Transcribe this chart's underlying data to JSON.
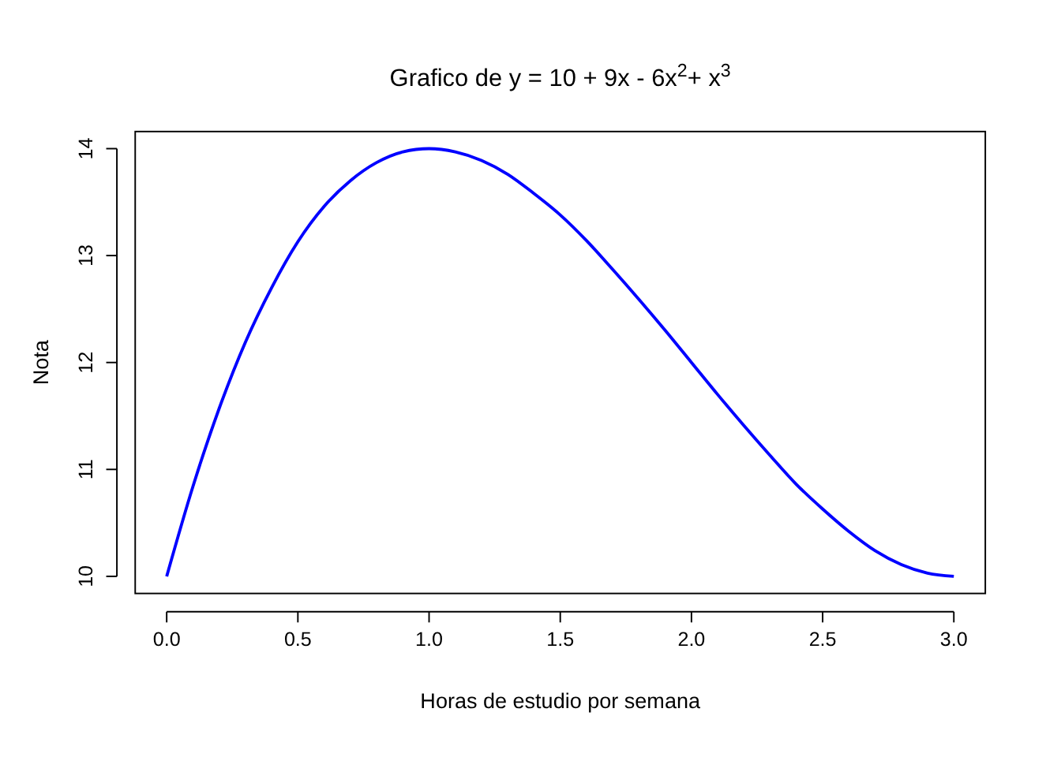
{
  "chart_data": {
    "type": "line",
    "title": "Grafico de y = 10 + 9x - 6x$^{2}$+ x$^{3}$",
    "xlabel": "Horas de estudio por semana",
    "ylabel": "Nota",
    "x": [
      0,
      0.1,
      0.2,
      0.3,
      0.4,
      0.5,
      0.6,
      0.7,
      0.8,
      0.9,
      1.0,
      1.1,
      1.2,
      1.3,
      1.4,
      1.5,
      1.6,
      1.7,
      1.8,
      1.9,
      2.0,
      2.1,
      2.2,
      2.3,
      2.4,
      2.5,
      2.6,
      2.7,
      2.8,
      2.9,
      3.0
    ],
    "series": [
      {
        "color": "#0000ff",
        "values": [
          10,
          10.84,
          11.57,
          12.19,
          12.7,
          13.13,
          13.46,
          13.7,
          13.87,
          13.97,
          14,
          13.97,
          13.89,
          13.76,
          13.58,
          13.38,
          13.14,
          12.87,
          12.59,
          12.3,
          12,
          11.7,
          11.41,
          11.13,
          10.86,
          10.63,
          10.42,
          10.24,
          10.11,
          10.03,
          10
        ]
      }
    ],
    "xlim": [
      -0.12,
      3.12
    ],
    "ylim": [
      9.84,
      14.16
    ],
    "xticks": [
      {
        "value": 0,
        "label": "0.0"
      },
      0.5,
      {
        "value": 1,
        "label": "1.0"
      },
      1.5,
      {
        "value": 2,
        "label": "2.0"
      },
      2.5,
      {
        "value": 3,
        "label": "3.0"
      }
    ],
    "yticks": [
      10,
      11,
      12,
      13,
      14
    ],
    "grid": false,
    "marker": "none",
    "line_style": "solid"
  }
}
